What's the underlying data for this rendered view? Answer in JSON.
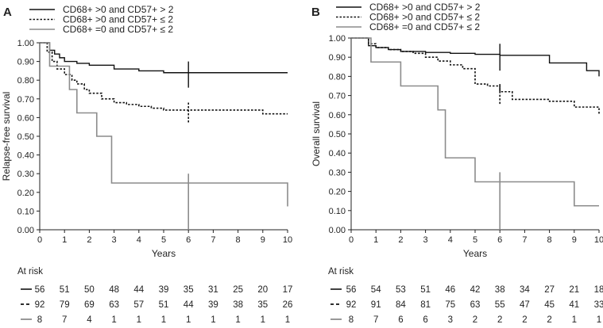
{
  "chart_data": [
    {
      "panel": "A",
      "type": "line",
      "step": true,
      "xlabel": "Years",
      "ylabel": "Relapse-free survival",
      "xlim": [
        0,
        10
      ],
      "ylim": [
        0,
        1
      ],
      "xticks": [
        "0",
        "1",
        "2",
        "3",
        "4",
        "5",
        "6",
        "7",
        "8",
        "9",
        "10"
      ],
      "yticks": [
        "0.00",
        "0.10",
        "0.20",
        "0.30",
        "0.40",
        "0.50",
        "0.60",
        "0.70",
        "0.80",
        "0.90",
        "1.00"
      ],
      "legend": [
        "CD68+ >0 and CD57+ > 2",
        "CD68+ >0 and CD57+ ≤ 2",
        "CD68+ =0 and CD57+ ≤ 2"
      ],
      "series": [
        {
          "name": "CD68+ >0 and CD57+ > 2",
          "style": "solid-black",
          "x": [
            0,
            0.4,
            0.6,
            0.8,
            1.0,
            1.5,
            2.0,
            3.0,
            4.0,
            5.0,
            10.0
          ],
          "y": [
            1.0,
            0.96,
            0.94,
            0.92,
            0.9,
            0.89,
            0.88,
            0.86,
            0.85,
            0.84,
            0.84
          ]
        },
        {
          "name": "CD68+ >0 and CD57+ ≤ 2",
          "style": "dotted-black",
          "x": [
            0,
            0.3,
            0.5,
            0.7,
            1.0,
            1.3,
            1.5,
            1.8,
            2.0,
            2.5,
            3.0,
            3.5,
            4.0,
            4.5,
            5.0,
            6.0,
            9.0,
            10.0
          ],
          "y": [
            1.0,
            0.95,
            0.9,
            0.86,
            0.83,
            0.8,
            0.78,
            0.75,
            0.73,
            0.7,
            0.68,
            0.67,
            0.66,
            0.65,
            0.64,
            0.64,
            0.62,
            0.62
          ]
        },
        {
          "name": "CD68+ =0 and CD57+ ≤ 2",
          "style": "solid-gray",
          "x": [
            0,
            0.4,
            1.2,
            1.5,
            2.3,
            2.9,
            10.0
          ],
          "y": [
            1.0,
            0.875,
            0.75,
            0.625,
            0.5,
            0.25,
            0.125
          ]
        }
      ],
      "landmark_x": 6,
      "at_risk": {
        "title": "At risk",
        "rows": [
          {
            "symbol": "—",
            "values": [
              "56",
              "51",
              "50",
              "48",
              "44",
              "39",
              "35",
              "31",
              "25",
              "20",
              "17"
            ]
          },
          {
            "symbol": "- -",
            "values": [
              "92",
              "79",
              "69",
              "63",
              "57",
              "51",
              "44",
              "39",
              "38",
              "35",
              "26"
            ]
          },
          {
            "symbol": "—",
            "values": [
              "8",
              "7",
              "4",
              "1",
              "1",
              "1",
              "1",
              "1",
              "1",
              "1",
              "1"
            ]
          }
        ]
      }
    },
    {
      "panel": "B",
      "type": "line",
      "step": true,
      "xlabel": "Years",
      "ylabel": "Overall survival",
      "xlim": [
        0,
        10
      ],
      "ylim": [
        0,
        1
      ],
      "xticks": [
        "0",
        "1",
        "2",
        "3",
        "4",
        "5",
        "6",
        "7",
        "8",
        "9",
        "10"
      ],
      "yticks": [
        "0.00",
        "0.10",
        "0.20",
        "0.30",
        "0.40",
        "0.50",
        "0.60",
        "0.70",
        "0.80",
        "0.90",
        "1.00"
      ],
      "legend": [
        "CD68+ >0 and CD57+ > 2",
        "CD68+ >0 and CD57+ ≤ 2",
        "CD68+ =0 and CD57+ ≤ 2"
      ],
      "series": [
        {
          "name": "CD68+ >0 and CD57+ > 2",
          "style": "solid-black",
          "x": [
            0,
            0.7,
            1.0,
            1.5,
            2.0,
            3.0,
            4.0,
            5.0,
            6.0,
            7.0,
            8.0,
            9.5,
            10.0
          ],
          "y": [
            1.0,
            0.96,
            0.95,
            0.94,
            0.93,
            0.925,
            0.92,
            0.915,
            0.91,
            0.91,
            0.87,
            0.83,
            0.8
          ]
        },
        {
          "name": "CD68+ >0 and CD57+ ≤ 2",
          "style": "dotted-black",
          "x": [
            0,
            0.7,
            1.0,
            1.5,
            2.0,
            2.5,
            3.0,
            3.5,
            4.0,
            4.5,
            5.0,
            5.5,
            6.0,
            6.5,
            7.0,
            7.5,
            8.0,
            9.0,
            10.0
          ],
          "y": [
            1.0,
            0.97,
            0.95,
            0.94,
            0.93,
            0.92,
            0.9,
            0.88,
            0.86,
            0.84,
            0.76,
            0.75,
            0.72,
            0.68,
            0.68,
            0.68,
            0.67,
            0.64,
            0.6
          ]
        },
        {
          "name": "CD68+ =0 and CD57+ ≤ 2",
          "style": "solid-gray",
          "x": [
            0,
            0.8,
            2.0,
            3.5,
            3.8,
            5.0,
            9.0,
            10.0
          ],
          "y": [
            1.0,
            0.875,
            0.75,
            0.625,
            0.375,
            0.25,
            0.125,
            0.125
          ]
        }
      ],
      "landmark_x": 6,
      "at_risk": {
        "title": "At risk",
        "rows": [
          {
            "symbol": "—",
            "values": [
              "56",
              "54",
              "53",
              "51",
              "46",
              "42",
              "38",
              "34",
              "27",
              "21",
              "18"
            ]
          },
          {
            "symbol": "- -",
            "values": [
              "92",
              "91",
              "84",
              "81",
              "75",
              "63",
              "55",
              "47",
              "45",
              "41",
              "33"
            ]
          },
          {
            "symbol": "—",
            "values": [
              "8",
              "7",
              "6",
              "6",
              "3",
              "2",
              "2",
              "2",
              "2",
              "1",
              "1"
            ]
          }
        ]
      }
    }
  ]
}
